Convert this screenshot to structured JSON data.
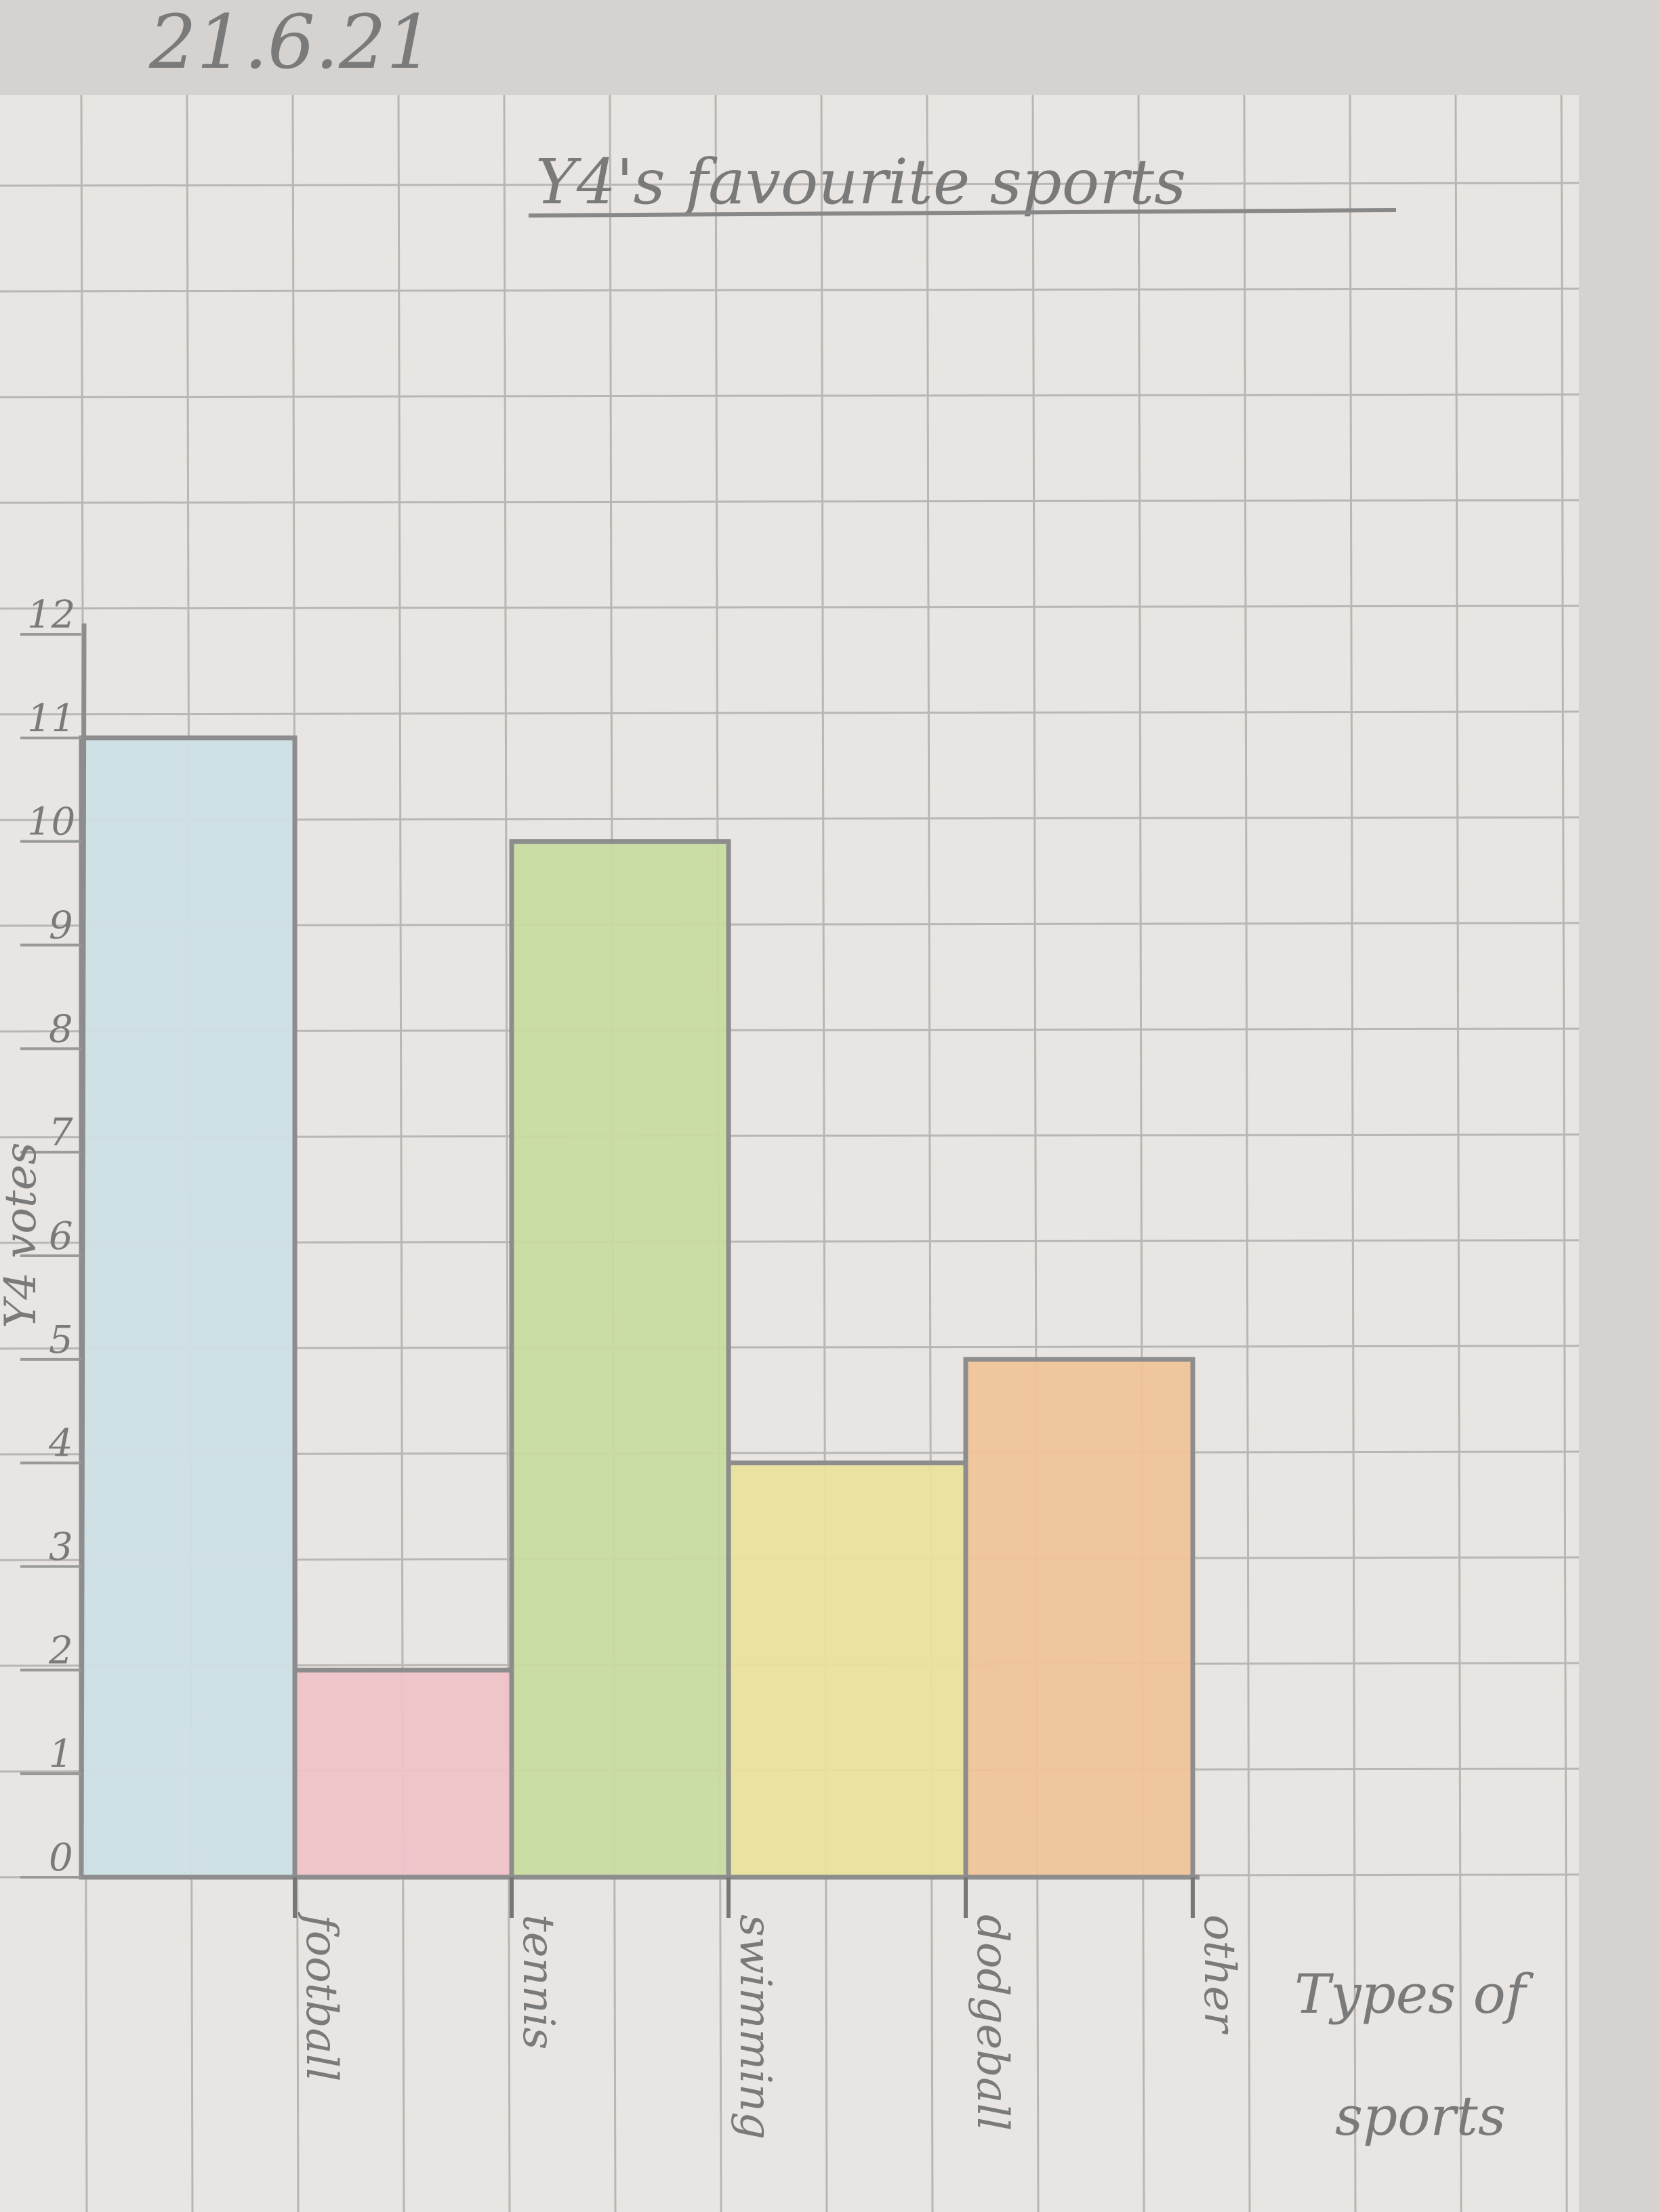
{
  "date": "21.6.21",
  "chart_data": {
    "type": "bar",
    "title": "Y4's favourite sports",
    "xlabel": "Types of sports",
    "ylabel": "Y4 votes",
    "categories": [
      "football",
      "tennis",
      "swimming",
      "dodgeball",
      "other"
    ],
    "values": [
      11,
      2,
      10,
      4,
      5
    ],
    "ylim": [
      0,
      12
    ],
    "yticks": [
      "0",
      "1",
      "2",
      "3",
      "4",
      "5",
      "6",
      "7",
      "8",
      "9",
      "10",
      "11",
      "12"
    ],
    "grid": true,
    "legend": "none",
    "colors": [
      "#cfe0e6",
      "#efc3c8",
      "#c8dca0",
      "#eae29c",
      "#f0c49a"
    ]
  }
}
